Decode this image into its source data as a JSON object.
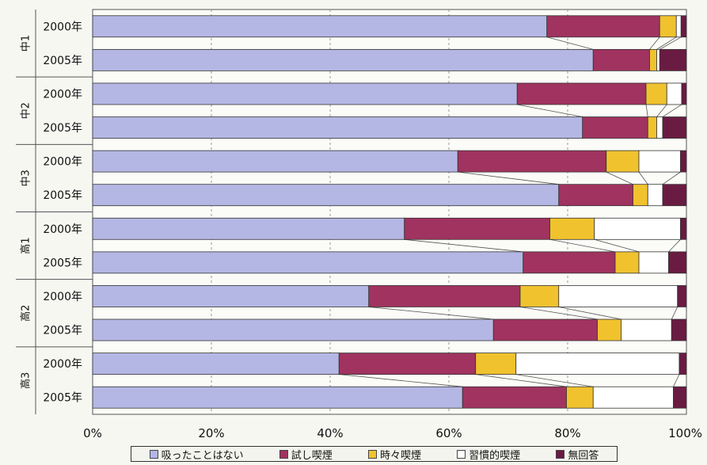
{
  "chart_data": {
    "type": "bar",
    "orientation": "horizontal",
    "stacked": true,
    "groups": [
      "中1",
      "中2",
      "中3",
      "高1",
      "高2",
      "高3"
    ],
    "categories": [
      "2000年",
      "2005年",
      "2000年",
      "2005年",
      "2000年",
      "2005年",
      "2000年",
      "2005年",
      "2000年",
      "2005年",
      "2000年",
      "2005年"
    ],
    "group_of_category": [
      0,
      0,
      1,
      1,
      2,
      2,
      3,
      3,
      4,
      4,
      5,
      5
    ],
    "series": [
      {
        "name": "吸ったことはない",
        "color": "#b4b7e4",
        "values": [
          76.5,
          84.3,
          71.5,
          82.5,
          61.5,
          78.5,
          52.5,
          72.5,
          46.5,
          67.5,
          41.5,
          62.3
        ]
      },
      {
        "name": "試し喫煙",
        "color": "#a0335f",
        "values": [
          19.0,
          9.5,
          21.7,
          11.0,
          25.0,
          12.5,
          24.5,
          15.5,
          25.5,
          17.5,
          23.0,
          17.5
        ]
      },
      {
        "name": "時々喫煙",
        "color": "#f0c22e",
        "values": [
          2.8,
          1.2,
          3.5,
          1.5,
          5.5,
          2.5,
          7.5,
          4.0,
          6.5,
          4.0,
          6.8,
          4.5
        ]
      },
      {
        "name": "習慣的喫煙",
        "color": "#ffffff",
        "values": [
          0.8,
          0.5,
          2.5,
          1.0,
          7.0,
          2.5,
          14.5,
          5.0,
          20.0,
          8.5,
          27.5,
          13.5
        ]
      },
      {
        "name": "無回答",
        "color": "#6a1b42",
        "values": [
          0.9,
          4.5,
          0.8,
          4.0,
          1.0,
          4.0,
          1.0,
          3.0,
          1.5,
          2.5,
          1.2,
          2.2
        ]
      }
    ],
    "xlim": [
      0,
      100
    ],
    "xticks": [
      "0%",
      "20%",
      "40%",
      "60%",
      "80%",
      "100%"
    ],
    "legend_position": "bottom",
    "grid": true
  }
}
